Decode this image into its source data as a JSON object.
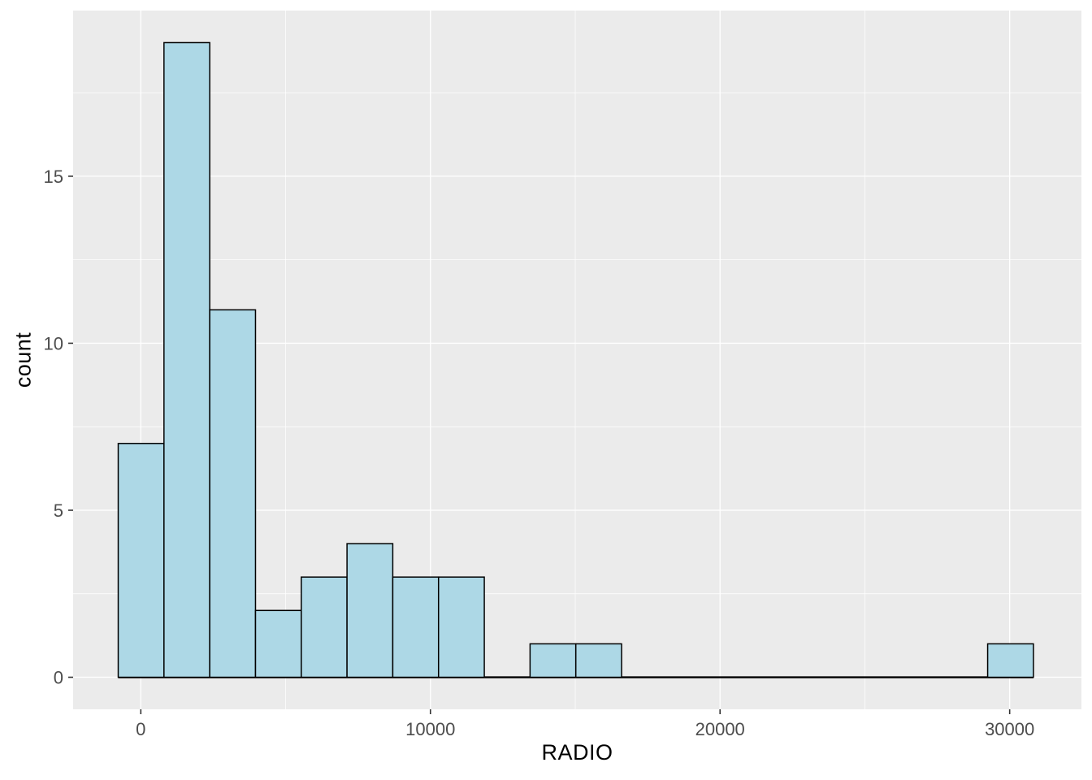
{
  "chart_data": {
    "type": "bar",
    "subtype": "histogram",
    "title": "",
    "xlabel": "RADIO",
    "ylabel": "count",
    "grid": true,
    "legend_position": "none",
    "bin_width": 1580,
    "bins": [
      {
        "x0": -780,
        "x1": 800,
        "count": 7
      },
      {
        "x0": 800,
        "x1": 2380,
        "count": 19
      },
      {
        "x0": 2380,
        "x1": 3960,
        "count": 11
      },
      {
        "x0": 3960,
        "x1": 5540,
        "count": 2
      },
      {
        "x0": 5540,
        "x1": 7120,
        "count": 3
      },
      {
        "x0": 7120,
        "x1": 8700,
        "count": 4
      },
      {
        "x0": 8700,
        "x1": 10280,
        "count": 3
      },
      {
        "x0": 10280,
        "x1": 11860,
        "count": 3
      },
      {
        "x0": 11860,
        "x1": 13440,
        "count": 0
      },
      {
        "x0": 13440,
        "x1": 15020,
        "count": 1
      },
      {
        "x0": 15020,
        "x1": 16600,
        "count": 1
      },
      {
        "x0": 16600,
        "x1": 18180,
        "count": 0
      },
      {
        "x0": 18180,
        "x1": 19760,
        "count": 0
      },
      {
        "x0": 19760,
        "x1": 21340,
        "count": 0
      },
      {
        "x0": 21340,
        "x1": 22920,
        "count": 0
      },
      {
        "x0": 22920,
        "x1": 24500,
        "count": 0
      },
      {
        "x0": 24500,
        "x1": 26080,
        "count": 0
      },
      {
        "x0": 26080,
        "x1": 27660,
        "count": 0
      },
      {
        "x0": 27660,
        "x1": 29240,
        "count": 0
      },
      {
        "x0": 29240,
        "x1": 30820,
        "count": 1
      }
    ],
    "x_ticks": [
      {
        "value": 0,
        "label": "0"
      },
      {
        "value": 10000,
        "label": "10000"
      },
      {
        "value": 20000,
        "label": "20000"
      },
      {
        "value": 30000,
        "label": "30000"
      }
    ],
    "y_ticks": [
      {
        "value": 0,
        "label": "0"
      },
      {
        "value": 5,
        "label": "5"
      },
      {
        "value": 10,
        "label": "10"
      },
      {
        "value": 15,
        "label": "15"
      }
    ],
    "x_minor_ticks": [
      5000,
      15000,
      25000
    ],
    "y_minor_ticks": [
      2.5,
      7.5,
      12.5,
      17.5
    ],
    "xlim": [
      -2337,
      32478
    ],
    "ylim": [
      -0.96,
      19.96
    ],
    "colors": {
      "bar_fill": "#ADD8E6",
      "bar_stroke": "#000000",
      "panel_background": "#EBEBEB",
      "grid_major": "#FFFFFF",
      "grid_minor": "#FFFFFF",
      "tick_label": "#4D4D4D",
      "tick_mark": "#333333",
      "axis_title": "#000000",
      "figure_background": "#FFFFFF"
    }
  }
}
